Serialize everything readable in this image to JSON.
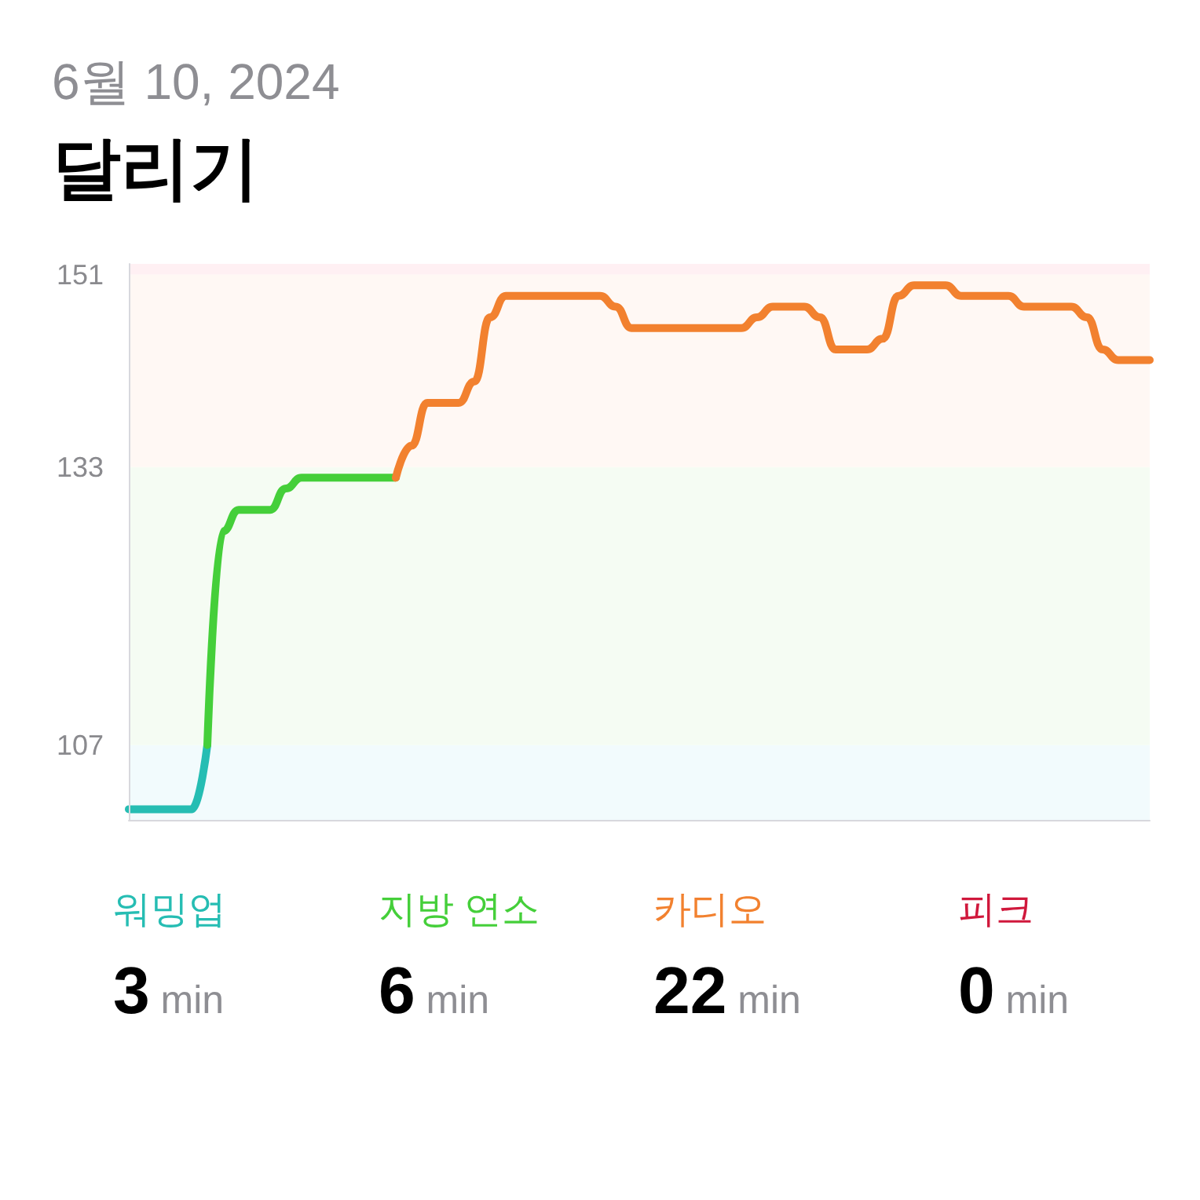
{
  "chart_data": [
    {
      "type": "line",
      "subtitle": "6월 10, 2024",
      "title": "달리기",
      "categories": [
        null,
        null,
        null,
        null,
        null,
        null,
        null,
        null,
        null,
        null,
        null,
        null,
        null,
        null,
        null,
        null,
        null,
        null,
        null,
        null,
        null,
        null,
        null,
        null,
        null,
        null,
        null,
        null,
        null,
        null,
        null,
        null,
        null,
        null,
        null,
        null,
        null,
        null,
        null,
        null,
        null,
        null,
        null,
        null,
        null,
        null,
        null,
        null,
        null,
        null,
        null,
        null,
        null,
        null,
        null,
        null,
        null,
        null,
        null,
        null,
        null,
        null,
        null,
        null,
        null,
        null
      ],
      "series": [
        {
          "color": "#26bdb3",
          "values": [
            101,
            101,
            101,
            101,
            101,
            107,
            null,
            null,
            null,
            null,
            null,
            null,
            null,
            null,
            null,
            null,
            null,
            null,
            null,
            null,
            null,
            null,
            null,
            null,
            null,
            null,
            null,
            null,
            null,
            null,
            null,
            null,
            null,
            null,
            null,
            null,
            null,
            null,
            null,
            null,
            null,
            null,
            null,
            null,
            null,
            null,
            null,
            null,
            null,
            null,
            null,
            null,
            null,
            null,
            null,
            null,
            null,
            null,
            null,
            null,
            null,
            null,
            null,
            null,
            null,
            null
          ]
        },
        {
          "color": "#45cf3a",
          "values": [
            null,
            null,
            null,
            null,
            null,
            107,
            127,
            129,
            129,
            129,
            131,
            132,
            132,
            132,
            132,
            132,
            132,
            132,
            null,
            null,
            null,
            null,
            null,
            null,
            null,
            null,
            null,
            null,
            null,
            null,
            null,
            null,
            null,
            null,
            null,
            null,
            null,
            null,
            null,
            null,
            null,
            null,
            null,
            null,
            null,
            null,
            null,
            null,
            null,
            null,
            null,
            null,
            null,
            null,
            null,
            null,
            null,
            null,
            null,
            null,
            null,
            null,
            null,
            null,
            null,
            null
          ]
        },
        {
          "color": "#f2812f",
          "values": [
            null,
            null,
            null,
            null,
            null,
            null,
            null,
            null,
            null,
            null,
            null,
            null,
            null,
            null,
            null,
            null,
            null,
            132,
            135,
            139,
            139,
            139,
            141,
            147,
            149,
            149,
            149,
            149,
            149,
            149,
            149,
            148,
            146,
            146,
            146,
            146,
            146,
            146,
            146,
            146,
            147,
            148,
            148,
            148,
            147,
            144,
            144,
            144,
            145,
            149,
            150,
            150,
            150,
            149,
            149,
            149,
            149,
            148,
            148,
            148,
            148,
            147,
            144,
            143,
            143,
            143
          ]
        }
      ],
      "ylim": [
        100,
        152
      ],
      "yticks": [
        107,
        133,
        151
      ],
      "tick_labels": "y",
      "grid": false,
      "line_style": "solid",
      "bands": [
        {
          "axis": "y",
          "from": 100,
          "to": 107,
          "color": "#f2fbfd"
        },
        {
          "axis": "y",
          "from": 107,
          "to": 133,
          "color": "#f5fcf3"
        },
        {
          "axis": "y",
          "from": 133,
          "to": 151,
          "color": "#fff8f4"
        },
        {
          "axis": "y",
          "from": 151,
          "to": 152,
          "color": "#fff0f3"
        }
      ]
    },
    {
      "type": "other",
      "categories": [
        "워밍업",
        "지방 연소",
        "카디오",
        "피크"
      ],
      "values": [
        3,
        6,
        22,
        0
      ],
      "value_labels": [
        "3 min",
        "6 min",
        "22 min",
        "0 min"
      ],
      "colors": [
        "#26bdb3",
        "#45cf3a",
        "#f2812f",
        "#d0183c"
      ]
    }
  ]
}
